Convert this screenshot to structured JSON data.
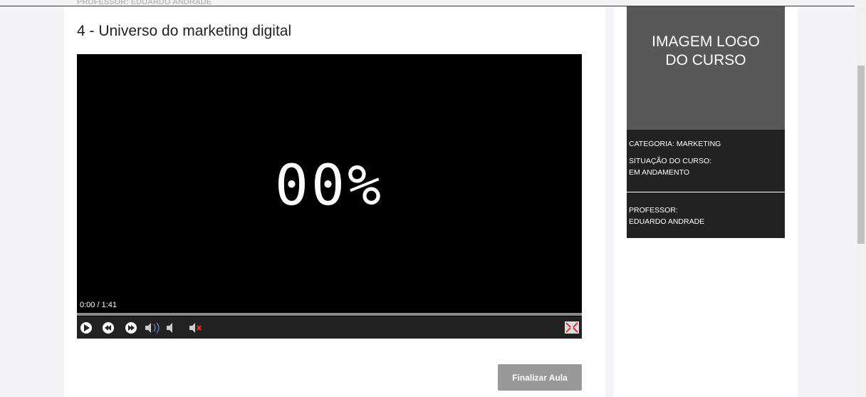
{
  "header": {
    "professor_cut": "PROFESSOR: EDUARDO ANDRADE",
    "title": "4 - Universo do marketing digital"
  },
  "video": {
    "overlay": "00%",
    "time": "0:00 / 1:41"
  },
  "button": "Finalizar Aula",
  "sidebar": {
    "logo_line1": "IMAGEM LOGO",
    "logo_line2": "DO CURSO",
    "category": "CATEGORIA: MARKETING",
    "status_label": "SITUAÇÃO DO CURSO:",
    "status": "EM ANDAMENTO",
    "professor_label": "PROFESSOR:",
    "professor": "EDUARDO ANDRADE"
  }
}
